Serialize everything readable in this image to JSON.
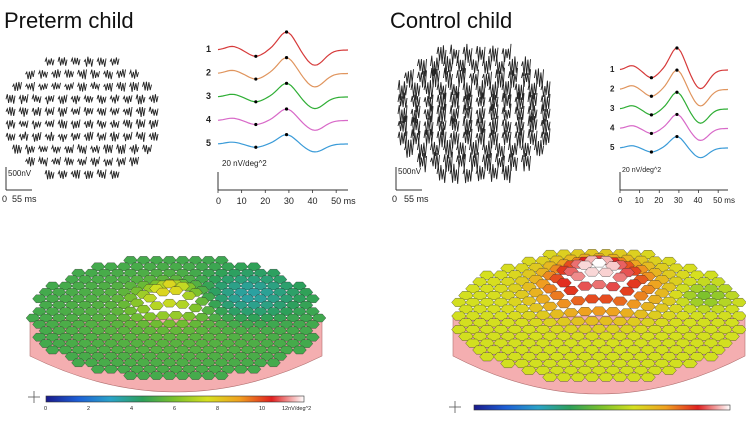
{
  "titles": {
    "left": "Preterm child",
    "right": "Control child"
  },
  "trace_array": {
    "left_scale": "500nV",
    "right_scale": "500nV",
    "x_start": "0",
    "x_end": "55 ms"
  },
  "ring_plot": {
    "left_scale": "20 nV/deg^2",
    "right_scale": "20 nV/deg^2",
    "ring_labels": [
      "1",
      "2",
      "3",
      "4",
      "5"
    ],
    "ring_colors": [
      "#d63a3a",
      "#e0955e",
      "#2fae35",
      "#d869c8",
      "#3a9bd8"
    ],
    "x_ticks": [
      "0",
      "10",
      "20",
      "30",
      "40",
      "50 ms"
    ]
  },
  "topography": {
    "colorbar_left": {
      "ticks": [
        "0",
        "2",
        "4",
        "6",
        "8",
        "10",
        "12nV/deg^2"
      ]
    },
    "colorbar_colors": [
      "#1a1a8c",
      "#1d5fd6",
      "#2aa2c8",
      "#2da05a",
      "#7cc22c",
      "#d6e020",
      "#f0a020",
      "#e02020",
      "#ffffff"
    ]
  }
}
